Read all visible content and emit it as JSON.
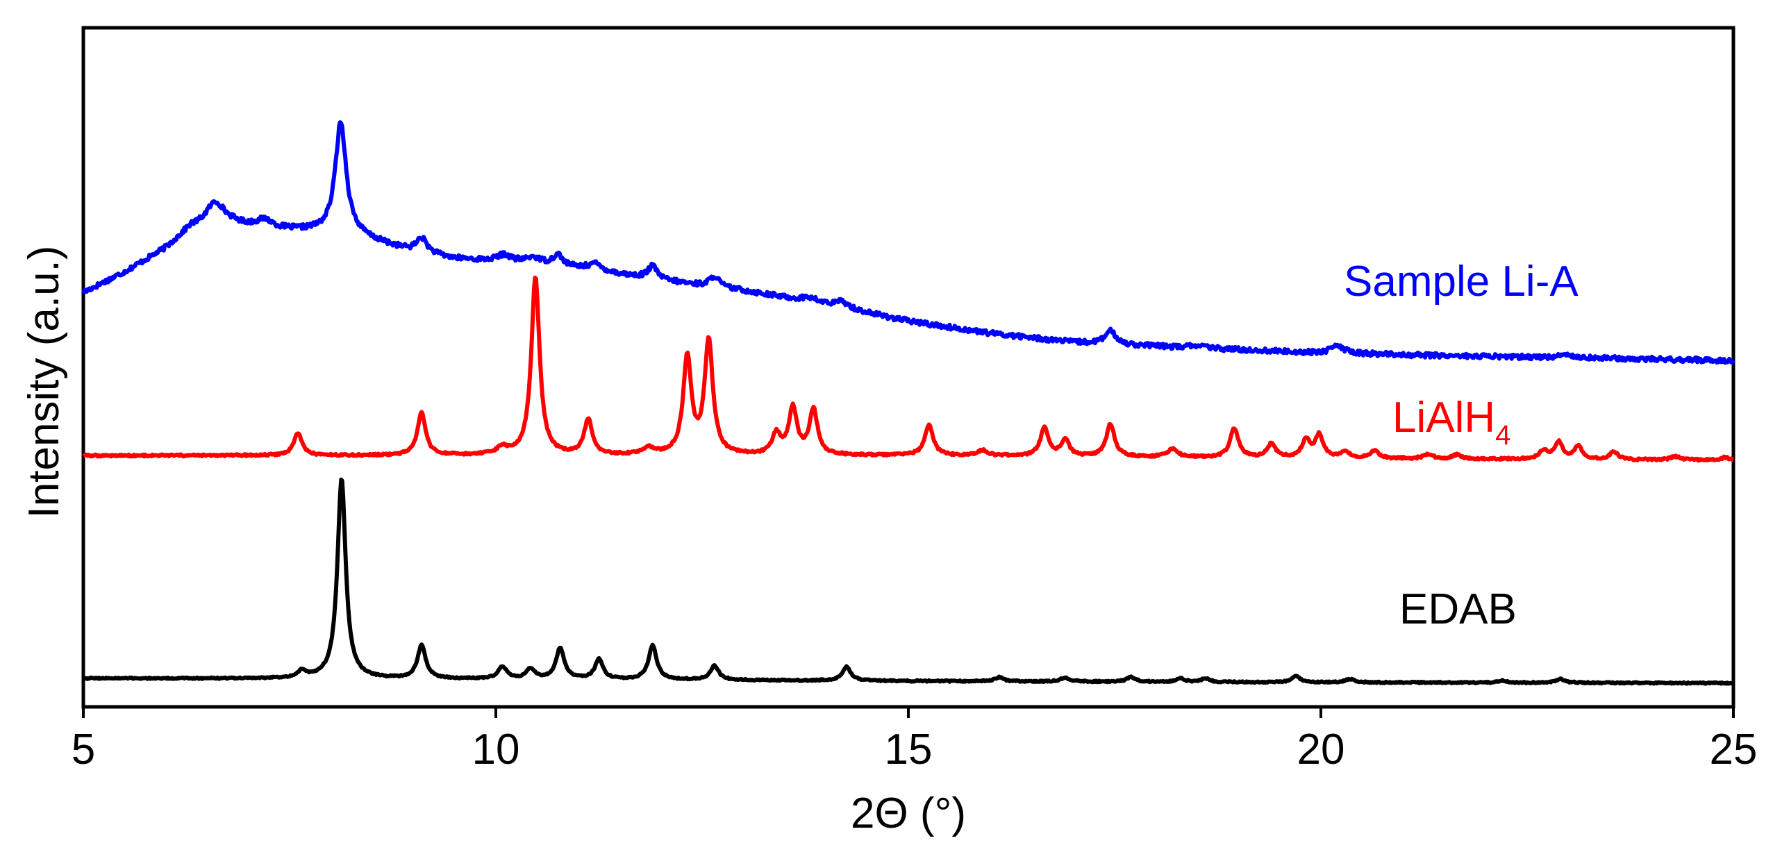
{
  "chart_data": {
    "type": "line",
    "title": "",
    "xlabel": "2Θ (°)",
    "ylabel": "Intensity (a.u.)",
    "xlim": [
      5,
      25
    ],
    "ylim": [
      0,
      100
    ],
    "x_ticks": [
      5,
      10,
      15,
      20,
      25
    ],
    "x_tick_labels": [
      "5",
      "10",
      "15",
      "20",
      "25"
    ],
    "y_ticks_shown": false,
    "grid": false,
    "legend": "inline labels to the right of each trace",
    "series": [
      {
        "name": "Sample Li-A",
        "label_main": "Sample Li-A",
        "label_sub": "",
        "color": "#0000ff",
        "baseline": [
          [
            5,
            61
          ],
          [
            5.5,
            64
          ],
          [
            6,
            67.5
          ],
          [
            6.3,
            70.5
          ],
          [
            6.8,
            71
          ],
          [
            7.3,
            70.3
          ],
          [
            7.8,
            70
          ],
          [
            8.3,
            69.3
          ],
          [
            9,
            67
          ],
          [
            9.5,
            66
          ],
          [
            10,
            65.6
          ],
          [
            10.5,
            65.3
          ],
          [
            11,
            64.6
          ],
          [
            12,
            62.8
          ],
          [
            13,
            61.3
          ],
          [
            14,
            59.3
          ],
          [
            15,
            56.8
          ],
          [
            16,
            55
          ],
          [
            17,
            53.7
          ],
          [
            18,
            53.1
          ],
          [
            19,
            52.6
          ],
          [
            20,
            52.1
          ],
          [
            22,
            51.6
          ],
          [
            25,
            51
          ]
        ],
        "peaks": [
          [
            6.6,
            3.5,
            0.14
          ],
          [
            7.2,
            1.2,
            0.12
          ],
          [
            8.12,
            16.5,
            0.08
          ],
          [
            9.1,
            2.2,
            0.08
          ],
          [
            10.1,
            1.0,
            0.1
          ],
          [
            10.45,
            0.8,
            0.1
          ],
          [
            10.75,
            1.6,
            0.07
          ],
          [
            11.2,
            1.0,
            0.1
          ],
          [
            11.9,
            1.9,
            0.07
          ],
          [
            12.65,
            1.6,
            0.07
          ],
          [
            13.8,
            0.6,
            0.1
          ],
          [
            14.2,
            0.9,
            0.09
          ],
          [
            17.45,
            1.9,
            0.08
          ],
          [
            18.5,
            0.4,
            0.1
          ],
          [
            20.2,
            1.1,
            0.1
          ],
          [
            23,
            0.4,
            0.15
          ]
        ],
        "noise": 0.35
      },
      {
        "name": "LiAlH4",
        "label_main": "LiAlH",
        "label_sub": "4",
        "color": "#ff0000",
        "baseline": [
          [
            5,
            37
          ],
          [
            10,
            37
          ],
          [
            15,
            37
          ],
          [
            20,
            36.6
          ],
          [
            25,
            36.3
          ]
        ],
        "peaks": [
          [
            7.6,
            3.3,
            0.06
          ],
          [
            9.1,
            6.2,
            0.06
          ],
          [
            10.08,
            1.0,
            0.08
          ],
          [
            10.48,
            26.2,
            0.06
          ],
          [
            11.12,
            5.2,
            0.06
          ],
          [
            11.85,
            1.0,
            0.08
          ],
          [
            12.32,
            14.2,
            0.06
          ],
          [
            12.58,
            16.8,
            0.06
          ],
          [
            13.4,
            3.0,
            0.06
          ],
          [
            13.6,
            6.8,
            0.06
          ],
          [
            13.85,
            6.6,
            0.06
          ],
          [
            15.25,
            4.5,
            0.06
          ],
          [
            15.9,
            0.8,
            0.07
          ],
          [
            16.65,
            4.1,
            0.06
          ],
          [
            16.9,
            2.4,
            0.06
          ],
          [
            17.45,
            4.8,
            0.06
          ],
          [
            18.2,
            1.2,
            0.07
          ],
          [
            18.95,
            4.3,
            0.06
          ],
          [
            19.4,
            2.0,
            0.06
          ],
          [
            19.82,
            2.6,
            0.06
          ],
          [
            19.98,
            3.3,
            0.06
          ],
          [
            20.3,
            0.9,
            0.06
          ],
          [
            20.65,
            1.1,
            0.06
          ],
          [
            21.3,
            0.7,
            0.06
          ],
          [
            21.65,
            0.6,
            0.06
          ],
          [
            22.7,
            1.3,
            0.06
          ],
          [
            22.88,
            2.5,
            0.06
          ],
          [
            23.12,
            1.9,
            0.06
          ],
          [
            23.55,
            1.1,
            0.06
          ],
          [
            24.3,
            0.5,
            0.07
          ],
          [
            24.9,
            0.4,
            0.07
          ]
        ],
        "noise": 0.15
      },
      {
        "name": "EDAB",
        "label_main": "EDAB",
        "label_sub": "",
        "color": "#000000",
        "baseline": [
          [
            5,
            4.2
          ],
          [
            10,
            4.1
          ],
          [
            15,
            3.8
          ],
          [
            20,
            3.6
          ],
          [
            25,
            3.5
          ]
        ],
        "peaks": [
          [
            7.65,
            1.0,
            0.06
          ],
          [
            8.13,
            29.5,
            0.06
          ],
          [
            9.1,
            4.9,
            0.06
          ],
          [
            10.08,
            1.8,
            0.06
          ],
          [
            10.42,
            1.5,
            0.06
          ],
          [
            10.78,
            4.6,
            0.06
          ],
          [
            11.25,
            2.9,
            0.06
          ],
          [
            11.9,
            5.0,
            0.06
          ],
          [
            12.65,
            2.1,
            0.06
          ],
          [
            14.25,
            2.1,
            0.06
          ],
          [
            16.1,
            0.6,
            0.06
          ],
          [
            16.9,
            0.6,
            0.06
          ],
          [
            17.7,
            0.7,
            0.06
          ],
          [
            18.3,
            0.5,
            0.06
          ],
          [
            18.6,
            0.5,
            0.06
          ],
          [
            19.7,
            0.9,
            0.06
          ],
          [
            20.35,
            0.5,
            0.06
          ],
          [
            22.2,
            0.3,
            0.06
          ],
          [
            22.9,
            0.6,
            0.06
          ]
        ],
        "noise": 0.1
      }
    ]
  }
}
